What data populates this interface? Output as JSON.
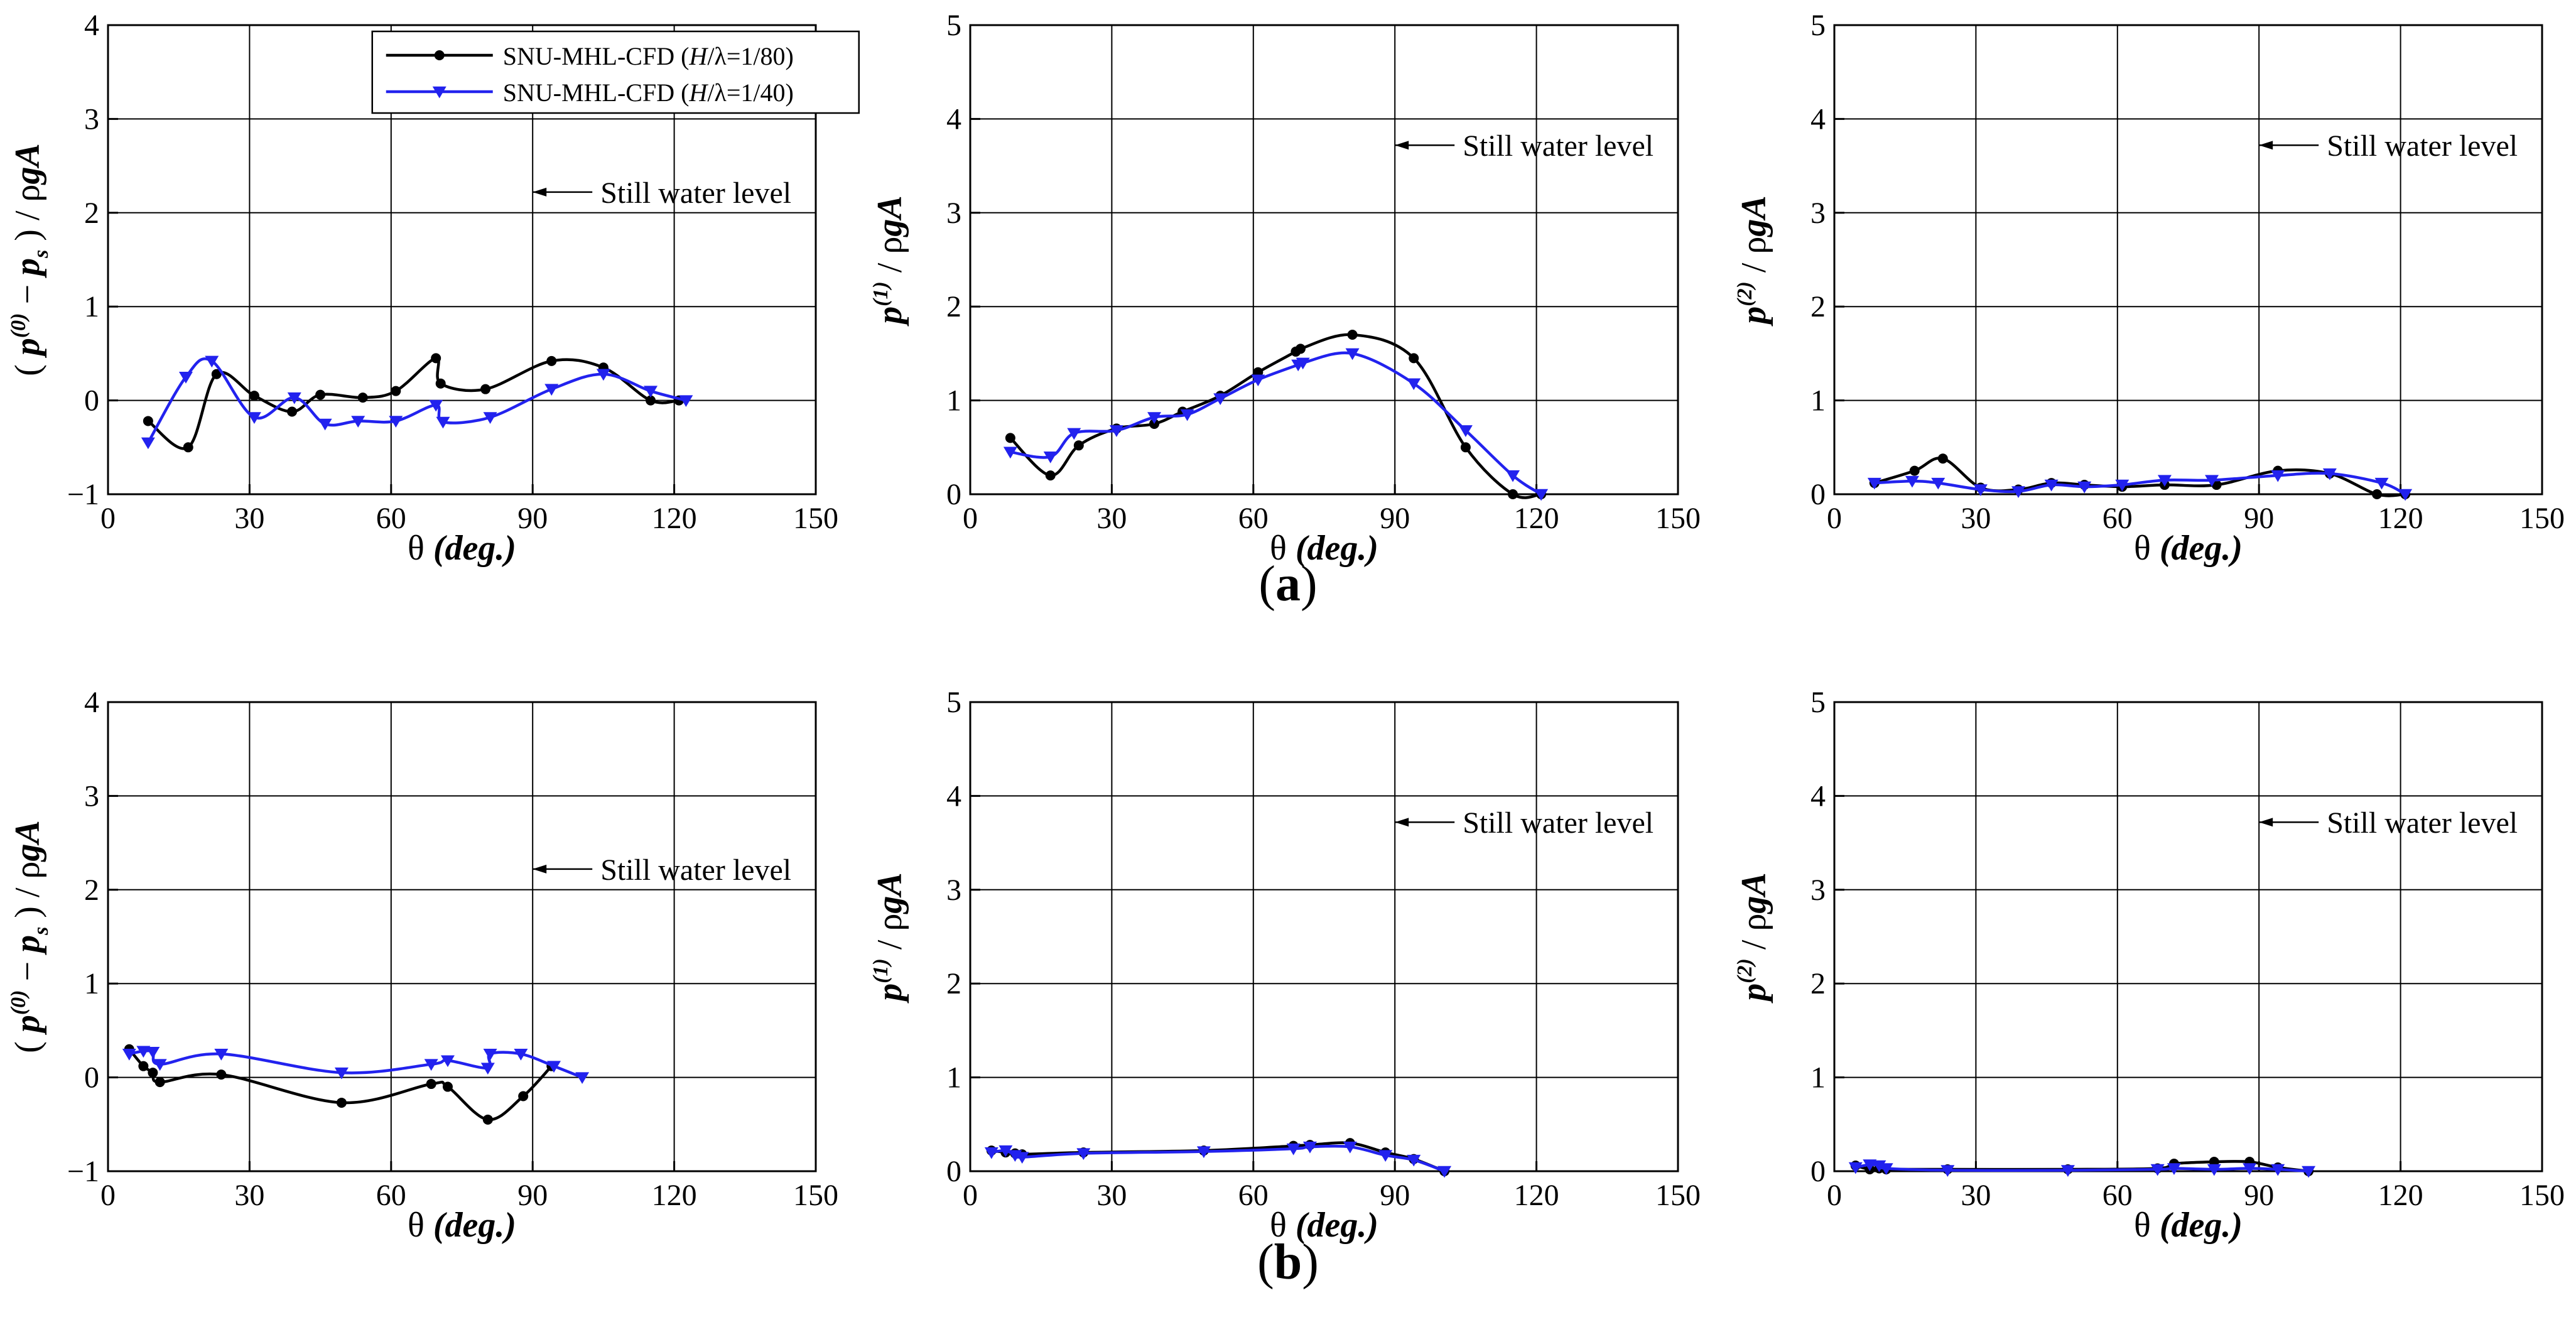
{
  "figure": {
    "panel_a_letter": "a",
    "panel_b_letter": "b",
    "annotation_text": "Still water level"
  },
  "legend": {
    "entries": [
      {
        "prefix": "SNU-MHL-CFD (",
        "var": "H",
        "suffix": "/λ=1/80)",
        "color": "#000000",
        "marker": "circle"
      },
      {
        "prefix": "SNU-MHL-CFD (",
        "var": "H",
        "suffix": "/λ=1/40)",
        "color": "#2222ee",
        "marker": "triangle-down"
      }
    ]
  },
  "colors": {
    "series_80": "#000000",
    "series_40": "#2222ee",
    "grid": "#000000"
  },
  "chart_data": [
    {
      "id": "a0",
      "type": "line",
      "row": "a",
      "col": 0,
      "xlabel": "θ (deg.)",
      "ylabel": "(p(0) − ps) / ρgA",
      "xlim": [
        0,
        150
      ],
      "ylim": [
        -1,
        4
      ],
      "xticks": [
        0,
        30,
        60,
        90,
        120,
        150
      ],
      "yticks": [
        -1,
        0,
        1,
        2,
        3,
        4
      ],
      "ytick_labels": [
        "−1",
        "0",
        "1",
        "2",
        "3",
        "4"
      ],
      "annotation": {
        "text": "Still water level",
        "arrow_tip": [
          90,
          2.22
        ]
      },
      "has_legend": true,
      "series": [
        {
          "name": "SNU-MHL-CFD (H/λ=1/80)",
          "color": "#000000",
          "marker": "circle",
          "x": [
            8.5,
            17,
            23,
            31,
            39,
            45,
            54,
            61,
            69.5,
            70.5,
            80,
            94,
            105,
            115,
            121
          ],
          "y": [
            -0.22,
            -0.5,
            0.28,
            0.05,
            -0.12,
            0.06,
            0.03,
            0.1,
            0.45,
            0.18,
            0.12,
            0.42,
            0.35,
            0.0,
            0.0
          ]
        },
        {
          "name": "SNU-MHL-CFD (H/λ=1/40)",
          "color": "#2222ee",
          "marker": "triangle-down",
          "x": [
            8.5,
            16.5,
            22,
            31,
            39.5,
            46,
            53,
            61,
            69.5,
            71,
            81,
            94,
            105,
            115,
            122.5
          ],
          "y": [
            -0.45,
            0.25,
            0.42,
            -0.18,
            0.03,
            -0.25,
            -0.22,
            -0.22,
            -0.05,
            -0.23,
            -0.18,
            0.12,
            0.28,
            0.1,
            0.0
          ]
        }
      ]
    },
    {
      "id": "a1",
      "type": "line",
      "row": "a",
      "col": 1,
      "xlabel": "θ (deg.)",
      "ylabel": "p(1) / ρgA",
      "xlim": [
        0,
        150
      ],
      "ylim": [
        0,
        5
      ],
      "xticks": [
        0,
        30,
        60,
        90,
        120,
        150
      ],
      "yticks": [
        0,
        1,
        2,
        3,
        4,
        5
      ],
      "ytick_labels": [
        "0",
        "1",
        "2",
        "3",
        "4",
        "5"
      ],
      "annotation": {
        "text": "Still water level",
        "arrow_tip": [
          90,
          3.72
        ]
      },
      "has_legend": false,
      "series": [
        {
          "name": "SNU-MHL-CFD (H/λ=1/80)",
          "color": "#000000",
          "marker": "circle",
          "x": [
            8.5,
            17,
            23,
            31,
            39,
            45,
            53,
            61,
            69,
            70,
            81,
            94,
            105,
            115,
            121
          ],
          "y": [
            0.6,
            0.2,
            0.52,
            0.7,
            0.75,
            0.88,
            1.05,
            1.3,
            1.52,
            1.55,
            1.7,
            1.45,
            0.5,
            0.0,
            0.0
          ]
        },
        {
          "name": "SNU-MHL-CFD (H/λ=1/40)",
          "color": "#2222ee",
          "marker": "triangle-down",
          "x": [
            8.5,
            17,
            22,
            31,
            39,
            46,
            53,
            61,
            69.5,
            70.5,
            81,
            94,
            105,
            115,
            121
          ],
          "y": [
            0.45,
            0.4,
            0.65,
            0.68,
            0.82,
            0.85,
            1.02,
            1.22,
            1.38,
            1.4,
            1.5,
            1.18,
            0.68,
            0.2,
            0.0
          ]
        }
      ]
    },
    {
      "id": "a2",
      "type": "line",
      "row": "a",
      "col": 2,
      "xlabel": "θ (deg.)",
      "ylabel": "p(2) / ρgA",
      "xlim": [
        0,
        150
      ],
      "ylim": [
        0,
        5
      ],
      "xticks": [
        0,
        30,
        60,
        90,
        120,
        150
      ],
      "yticks": [
        0,
        1,
        2,
        3,
        4,
        5
      ],
      "ytick_labels": [
        "0",
        "1",
        "2",
        "3",
        "4",
        "5"
      ],
      "annotation": {
        "text": "Still water level",
        "arrow_tip": [
          90,
          3.72
        ]
      },
      "has_legend": false,
      "series": [
        {
          "name": "SNU-MHL-CFD (H/λ=1/80)",
          "color": "#000000",
          "marker": "circle",
          "x": [
            8.5,
            17,
            23,
            31,
            39,
            46,
            53,
            61,
            70,
            81,
            94,
            105,
            115,
            121
          ],
          "y": [
            0.12,
            0.25,
            0.38,
            0.07,
            0.05,
            0.12,
            0.1,
            0.08,
            0.1,
            0.1,
            0.25,
            0.22,
            0.0,
            0.0
          ]
        },
        {
          "name": "SNU-MHL-CFD (H/λ=1/40)",
          "color": "#2222ee",
          "marker": "triangle-down",
          "x": [
            8.5,
            16.5,
            22,
            31,
            39,
            46,
            53,
            61,
            70,
            80,
            94,
            105,
            116,
            121
          ],
          "y": [
            0.12,
            0.14,
            0.12,
            0.05,
            0.03,
            0.1,
            0.08,
            0.1,
            0.15,
            0.15,
            0.2,
            0.22,
            0.12,
            0.0
          ]
        }
      ]
    },
    {
      "id": "b0",
      "type": "line",
      "row": "b",
      "col": 0,
      "xlabel": "θ (deg.)",
      "ylabel": "(p(0) − ps) / ρgA",
      "xlim": [
        0,
        150
      ],
      "ylim": [
        -1,
        4
      ],
      "xticks": [
        0,
        30,
        60,
        90,
        120,
        150
      ],
      "yticks": [
        -1,
        0,
        1,
        2,
        3,
        4
      ],
      "ytick_labels": [
        "−1",
        "0",
        "1",
        "2",
        "3",
        "4"
      ],
      "annotation": {
        "text": "Still water level",
        "arrow_tip": [
          90,
          2.22
        ]
      },
      "has_legend": false,
      "series": [
        {
          "name": "SNU-MHL-CFD (H/λ=1/80)",
          "color": "#000000",
          "marker": "circle",
          "x": [
            4.5,
            7.5,
            9.5,
            11,
            24,
            49.5,
            68.5,
            72,
            80.5,
            88,
            94
          ],
          "y": [
            0.3,
            0.12,
            0.05,
            -0.05,
            0.03,
            -0.27,
            -0.07,
            -0.1,
            -0.45,
            -0.2,
            0.12
          ]
        },
        {
          "name": "SNU-MHL-CFD (H/λ=1/40)",
          "color": "#2222ee",
          "marker": "triangle-down",
          "x": [
            4.5,
            7.5,
            9.5,
            11,
            24,
            49.5,
            68.5,
            72,
            80.5,
            81,
            87.5,
            94.5,
            100.5
          ],
          "y": [
            0.25,
            0.28,
            0.27,
            0.14,
            0.25,
            0.05,
            0.14,
            0.18,
            0.1,
            0.25,
            0.25,
            0.12,
            0.0
          ]
        }
      ]
    },
    {
      "id": "b1",
      "type": "line",
      "row": "b",
      "col": 1,
      "xlabel": "θ (deg.)",
      "ylabel": "p(1) / ρgA",
      "xlim": [
        0,
        150
      ],
      "ylim": [
        0,
        5
      ],
      "xticks": [
        0,
        30,
        60,
        90,
        120,
        150
      ],
      "yticks": [
        0,
        1,
        2,
        3,
        4,
        5
      ],
      "ytick_labels": [
        "0",
        "1",
        "2",
        "3",
        "4",
        "5"
      ],
      "annotation": {
        "text": "Still water level",
        "arrow_tip": [
          90,
          3.72
        ]
      },
      "has_legend": false,
      "series": [
        {
          "name": "SNU-MHL-CFD (H/λ=1/80)",
          "color": "#000000",
          "marker": "circle",
          "x": [
            4.5,
            7.5,
            9.5,
            11,
            24,
            49.5,
            68.5,
            72,
            80.5,
            88,
            94,
            100.5
          ],
          "y": [
            0.22,
            0.2,
            0.19,
            0.18,
            0.2,
            0.22,
            0.27,
            0.28,
            0.3,
            0.2,
            0.13,
            0.0
          ]
        },
        {
          "name": "SNU-MHL-CFD (H/λ=1/40)",
          "color": "#2222ee",
          "marker": "triangle-down",
          "x": [
            4.5,
            7.5,
            9.5,
            11,
            24,
            49.5,
            68.5,
            72,
            80.5,
            88,
            94,
            100.5
          ],
          "y": [
            0.2,
            0.22,
            0.17,
            0.15,
            0.19,
            0.21,
            0.24,
            0.26,
            0.26,
            0.17,
            0.12,
            0.0
          ]
        }
      ]
    },
    {
      "id": "b2",
      "type": "line",
      "row": "b",
      "col": 2,
      "xlabel": "θ (deg.)",
      "ylabel": "p(2) / ρgA",
      "xlim": [
        0,
        150
      ],
      "ylim": [
        0,
        5
      ],
      "xticks": [
        0,
        30,
        60,
        90,
        120,
        150
      ],
      "yticks": [
        0,
        1,
        2,
        3,
        4,
        5
      ],
      "ytick_labels": [
        "0",
        "1",
        "2",
        "3",
        "4",
        "5"
      ],
      "annotation": {
        "text": "Still water level",
        "arrow_tip": [
          90,
          3.72
        ]
      },
      "has_legend": false,
      "series": [
        {
          "name": "SNU-MHL-CFD (H/λ=1/80)",
          "color": "#000000",
          "marker": "circle",
          "x": [
            4.5,
            7.5,
            9.5,
            11,
            24,
            49.5,
            68.5,
            72,
            80.5,
            88,
            94,
            100.5
          ],
          "y": [
            0.06,
            0.02,
            0.03,
            0.02,
            0.02,
            0.02,
            0.03,
            0.08,
            0.1,
            0.1,
            0.04,
            0.0
          ]
        },
        {
          "name": "SNU-MHL-CFD (H/λ=1/40)",
          "color": "#2222ee",
          "marker": "triangle-down",
          "x": [
            4.5,
            7.5,
            9.5,
            11,
            24,
            49.5,
            68.5,
            72,
            80.5,
            88,
            94,
            100.5
          ],
          "y": [
            0.04,
            0.07,
            0.06,
            0.03,
            0.01,
            0.01,
            0.02,
            0.03,
            0.02,
            0.03,
            0.02,
            0.0
          ]
        }
      ]
    }
  ]
}
